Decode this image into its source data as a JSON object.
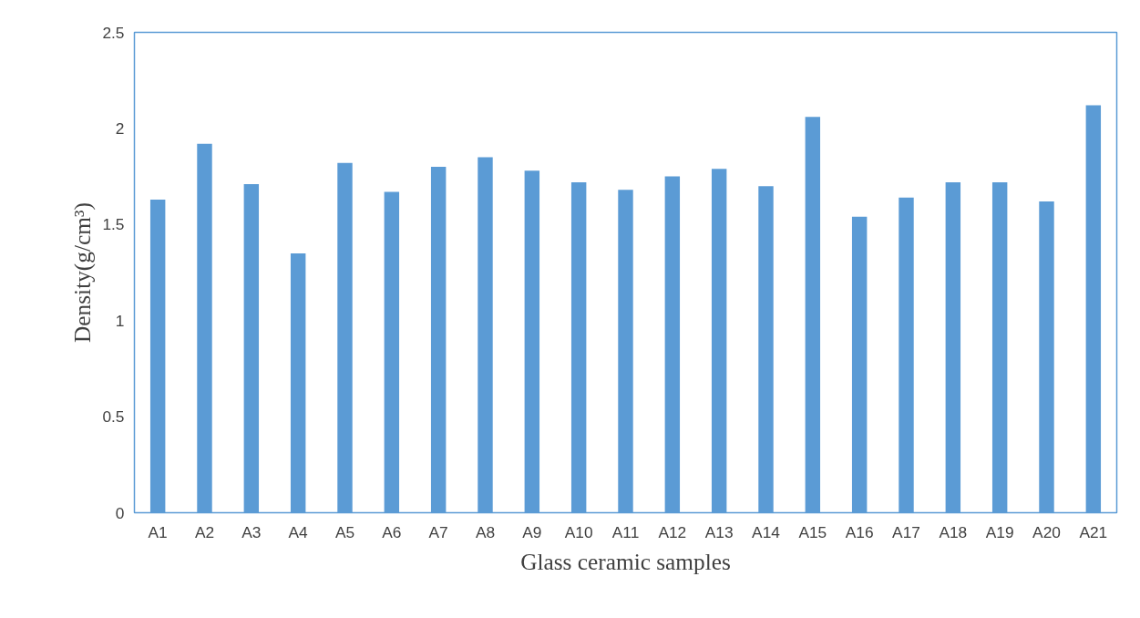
{
  "chart_data": {
    "type": "bar",
    "xlabel": "Glass ceramic samples",
    "ylabel": "Density(g/cm³)",
    "categories": [
      "A1",
      "A2",
      "A3",
      "A4",
      "A5",
      "A6",
      "A7",
      "A8",
      "A9",
      "A10",
      "A11",
      "A12",
      "A13",
      "A14",
      "A15",
      "A16",
      "A17",
      "A18",
      "A19",
      "A20",
      "A21"
    ],
    "values": [
      1.63,
      1.92,
      1.71,
      1.35,
      1.82,
      1.67,
      1.8,
      1.85,
      1.78,
      1.72,
      1.68,
      1.75,
      1.79,
      1.7,
      2.06,
      1.54,
      1.64,
      1.72,
      1.72,
      1.62,
      2.12
    ],
    "color": "#5b9bd5",
    "ylim": [
      0,
      2.5
    ],
    "yticks": [
      0,
      0.5,
      1,
      1.5,
      2,
      2.5
    ],
    "grid": false
  }
}
